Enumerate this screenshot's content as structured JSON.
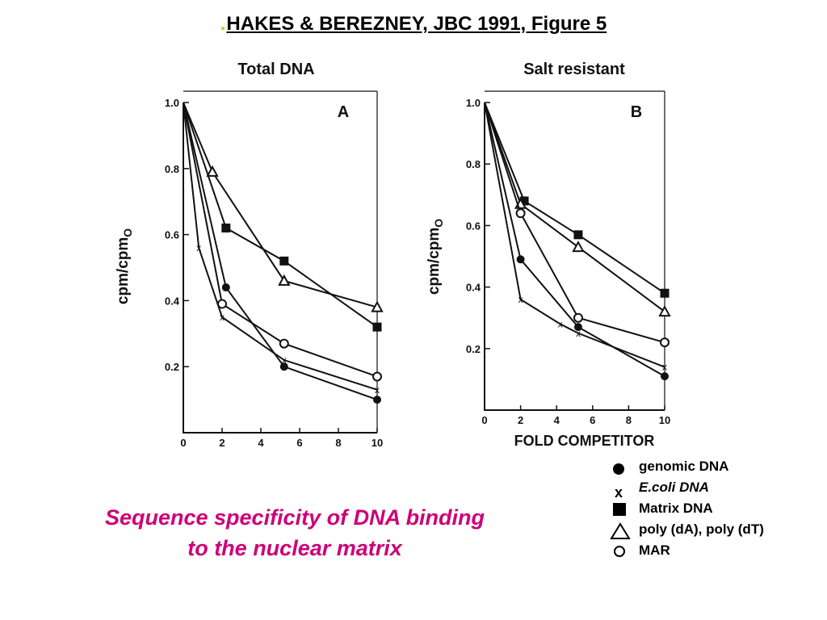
{
  "title": {
    "dot": ".",
    "text": "HAKES & BEREZNEY, JBC 1991, Figure 5"
  },
  "subtitle": [
    "Sequence specificity of DNA binding",
    "to the nuclear matrix"
  ],
  "legend": [
    {
      "symbol": "filled-circle",
      "label": "genomic DNA",
      "italic": false
    },
    {
      "symbol": "x-mark",
      "label": "E.coli DNA",
      "italic": true
    },
    {
      "symbol": "filled-square",
      "label": "Matrix DNA",
      "italic": false
    },
    {
      "symbol": "open-triangle",
      "label": "poly (dA), poly (dT)",
      "italic": false
    },
    {
      "symbol": "open-circle",
      "label": "MAR",
      "italic": false
    }
  ],
  "chart_data": [
    {
      "type": "line",
      "title": "Total DNA",
      "panel_label": "A",
      "ylabel": "cpm/cpm",
      "ylabel_subscript": "O",
      "xlabel": "",
      "xlim": [
        0,
        10
      ],
      "ylim": [
        0,
        1.0
      ],
      "xticks": [
        "0",
        "2",
        "4",
        "6",
        "8",
        "10"
      ],
      "yticks": [
        "0.2",
        "0.4",
        "0.6",
        "0.8",
        "1.0"
      ],
      "grid": false,
      "series": [
        {
          "marker": "filled-circle",
          "x": [
            0,
            2.2,
            5.2,
            10
          ],
          "y": [
            1.0,
            0.44,
            0.2,
            0.1
          ]
        },
        {
          "marker": "x-mark",
          "x": [
            0,
            0.8,
            2,
            5.2,
            10
          ],
          "y": [
            1.0,
            0.56,
            0.35,
            0.22,
            0.13
          ]
        },
        {
          "marker": "filled-square",
          "x": [
            0,
            2.2,
            5.2,
            10
          ],
          "y": [
            1.0,
            0.62,
            0.52,
            0.32
          ]
        },
        {
          "marker": "open-triangle",
          "x": [
            0,
            1.5,
            5.2,
            10
          ],
          "y": [
            1.0,
            0.79,
            0.46,
            0.38
          ]
        },
        {
          "marker": "open-circle",
          "x": [
            0,
            2,
            5.2,
            10
          ],
          "y": [
            1.0,
            0.39,
            0.27,
            0.17
          ]
        }
      ]
    },
    {
      "type": "line",
      "title": "Salt resistant",
      "panel_label": "B",
      "ylabel": "cpm/cpm",
      "ylabel_subscript": "O",
      "xlabel": "FOLD COMPETITOR",
      "xlim": [
        0,
        10
      ],
      "ylim": [
        0,
        1.0
      ],
      "xticks": [
        "0",
        "2",
        "4",
        "6",
        "8",
        "10"
      ],
      "yticks": [
        "0.2",
        "0.4",
        "0.6",
        "0.8",
        "1.0"
      ],
      "grid": false,
      "series": [
        {
          "marker": "filled-circle",
          "x": [
            0,
            2,
            5.2,
            10
          ],
          "y": [
            1.0,
            0.49,
            0.27,
            0.11
          ]
        },
        {
          "marker": "x-mark",
          "x": [
            0,
            2,
            4.2,
            5.2,
            10
          ],
          "y": [
            1.0,
            0.36,
            0.28,
            0.25,
            0.14
          ]
        },
        {
          "marker": "filled-square",
          "x": [
            0,
            2.2,
            5.2,
            10
          ],
          "y": [
            1.0,
            0.68,
            0.57,
            0.38
          ]
        },
        {
          "marker": "open-triangle",
          "x": [
            0,
            2,
            5.2,
            10
          ],
          "y": [
            1.0,
            0.67,
            0.53,
            0.32
          ]
        },
        {
          "marker": "open-circle",
          "x": [
            0,
            2,
            5.2,
            10
          ],
          "y": [
            1.0,
            0.64,
            0.3,
            0.22
          ]
        }
      ]
    }
  ]
}
